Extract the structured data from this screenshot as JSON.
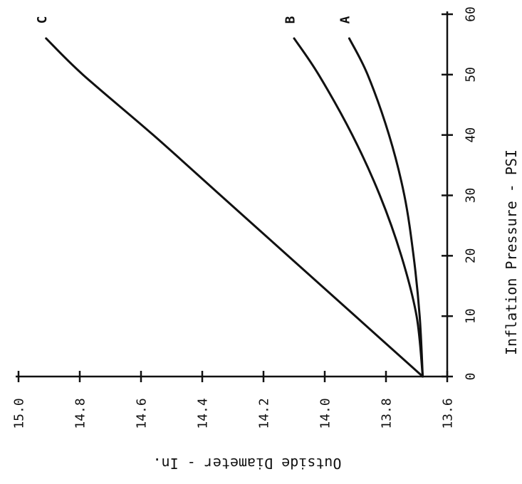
{
  "chart_data": {
    "type": "line",
    "orientation": "rotated 90 degrees counter-clockwise",
    "xlabel": "Inflation Pressure - PSI",
    "ylabel": "Outside Diameter - In.",
    "xlim": [
      0,
      60
    ],
    "ylim": [
      13.6,
      15.0
    ],
    "x_ticks": [
      "0",
      "10",
      "20",
      "30",
      "40",
      "50",
      "60"
    ],
    "y_ticks": [
      "13.6",
      "13.8",
      "14.0",
      "14.2",
      "14.4",
      "14.6",
      "14.8",
      "15.0"
    ],
    "grid": false,
    "colors": {
      "line": "#111111",
      "background": "#ffffff"
    },
    "series": [
      {
        "name": "A",
        "x": [
          0,
          10,
          20,
          30,
          40,
          50,
          56
        ],
        "y": [
          13.68,
          13.69,
          13.71,
          13.74,
          13.79,
          13.86,
          13.92
        ]
      },
      {
        "name": "B",
        "x": [
          0,
          10,
          20,
          30,
          40,
          50,
          56
        ],
        "y": [
          13.68,
          13.7,
          13.75,
          13.82,
          13.91,
          14.02,
          14.1
        ]
      },
      {
        "name": "C",
        "x": [
          0,
          10,
          20,
          30,
          40,
          50,
          56
        ],
        "y": [
          13.68,
          13.9,
          14.12,
          14.34,
          14.56,
          14.79,
          14.91
        ]
      }
    ]
  }
}
